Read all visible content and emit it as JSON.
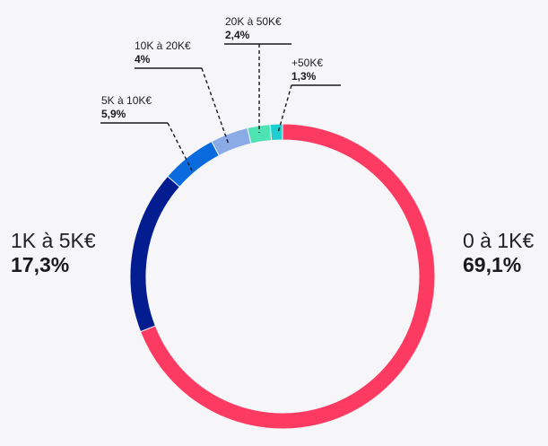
{
  "chart_data": {
    "type": "pie",
    "variant": "donut",
    "title": "",
    "slices": [
      {
        "label": "0 à 1K€",
        "value_text": "69,1%",
        "value": 69.1,
        "color": "#fd3a61"
      },
      {
        "label": "1K à 5K€",
        "value_text": "17,3%",
        "value": 17.3,
        "color": "#031d91"
      },
      {
        "label": "5K à 10K€",
        "value_text": "5,9%",
        "value": 5.9,
        "color": "#0a6bdf"
      },
      {
        "label": "10K à 20K€",
        "value_text": "4%",
        "value": 4.0,
        "color": "#8aabe6"
      },
      {
        "label": "20K à 50K€",
        "value_text": "2,4%",
        "value": 2.4,
        "color": "#4fe2b3"
      },
      {
        "label": "+50K€",
        "value_text": "1,3%",
        "value": 1.3,
        "color": "#1dd0cf"
      }
    ],
    "start_angle_deg": 0,
    "direction": "clockwise"
  }
}
